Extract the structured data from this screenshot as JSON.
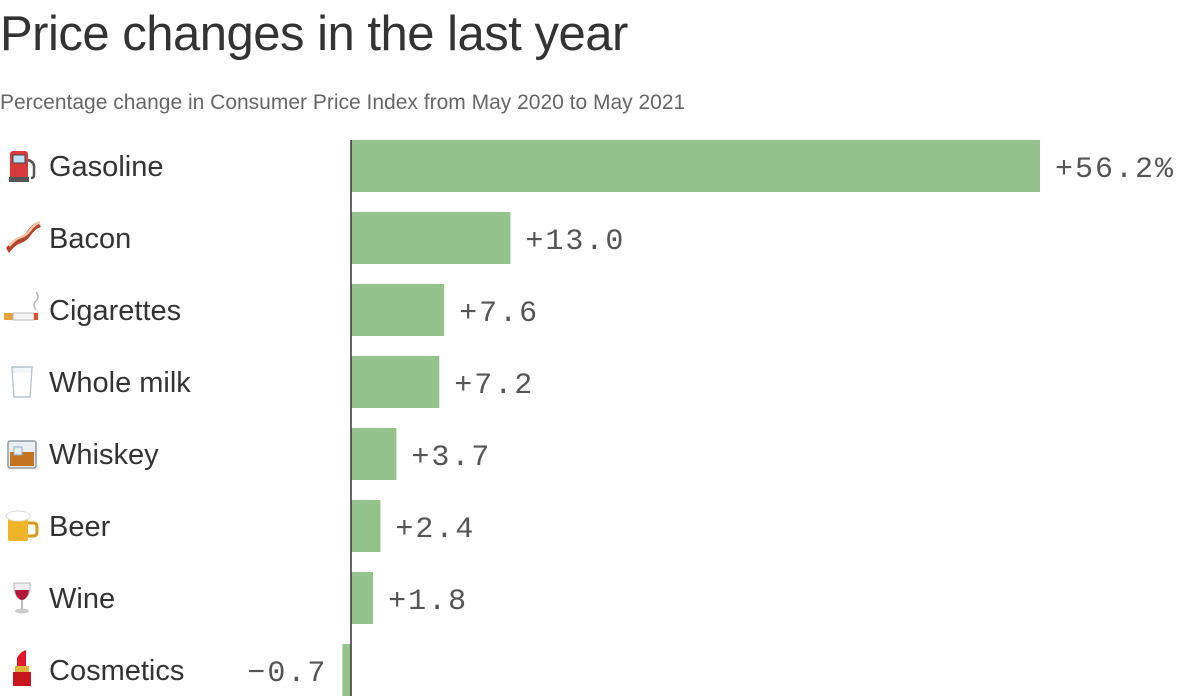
{
  "chart_data": {
    "type": "bar",
    "orientation": "horizontal",
    "title": "Price changes in the last year",
    "subtitle": "Percentage change in Consumer Price Index from May 2020 to May 2021",
    "categories": [
      "Gasoline",
      "Bacon",
      "Cigarettes",
      "Whole milk",
      "Whiskey",
      "Beer",
      "Wine",
      "Cosmetics"
    ],
    "icons": [
      "fuel-pump-icon",
      "bacon-icon",
      "cigarette-icon",
      "milk-glass-icon",
      "whiskey-glass-icon",
      "beer-mug-icon",
      "wine-glass-icon",
      "lipstick-icon"
    ],
    "values": [
      56.2,
      13.0,
      7.6,
      7.2,
      3.7,
      2.4,
      1.8,
      -0.7
    ],
    "value_labels": [
      "+56.2%",
      "+13.0",
      "+7.6",
      "+7.2",
      "+3.7",
      "+2.4",
      "+1.8",
      "−0.7"
    ],
    "bar_color": "#93c38a",
    "grid": false,
    "legend": "none"
  }
}
